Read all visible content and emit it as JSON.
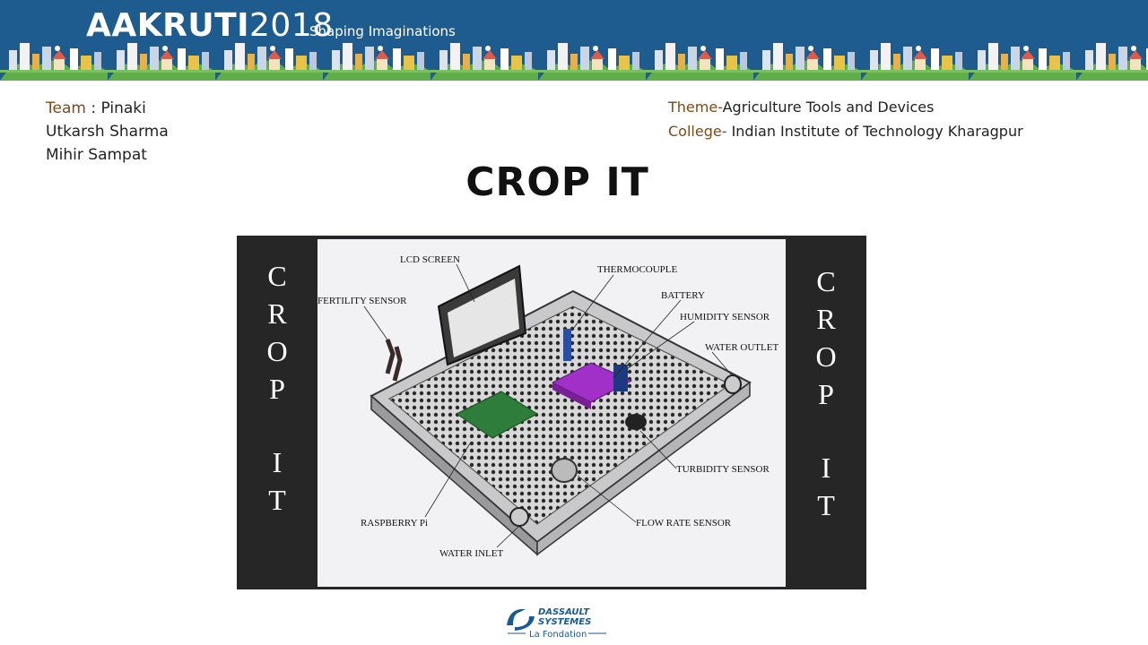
{
  "banner": {
    "brand": "AAKRUTI",
    "year": "2018",
    "tagline": "Shaping Imaginations"
  },
  "team": {
    "label": "Team",
    "members": [
      "Pinaki",
      "Utkarsh Sharma",
      "Mihir Sampat"
    ]
  },
  "theme": {
    "label": "Theme-",
    "value": "Agriculture Tools and Devices"
  },
  "college": {
    "label": "College-",
    "value": "Indian Institute of Technology  Kharagpur"
  },
  "title": "CROP IT",
  "side_text": {
    "word1": [
      "C",
      "R",
      "O",
      "P"
    ],
    "word2": [
      "I",
      "T"
    ]
  },
  "diagram_labels": {
    "lcd": "LCD SCREEN",
    "thermocouple": "THERMOCOUPLE",
    "fertility": "FERTILITY SENSOR",
    "battery": "BATTERY",
    "humidity": "HUMIDITY SENSOR",
    "water_outlet": "WATER OUTLET",
    "turbidity": "TURBIDITY SENSOR",
    "raspberry": "RASPBERRY Pi",
    "flow_rate": "FLOW RATE SENSOR",
    "water_inlet": "WATER INLET"
  },
  "footer": {
    "company_line1": "DASSAULT",
    "company_line2": "SYSTEMES",
    "sub": "La Fondation"
  },
  "colors": {
    "banner": "#1e5b8e",
    "label_brown": "#7a4a1a"
  }
}
